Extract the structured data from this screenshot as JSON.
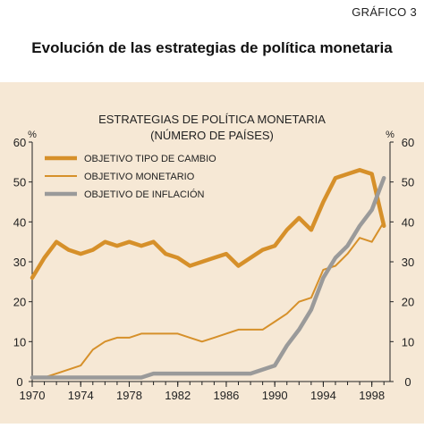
{
  "header": {
    "figure_label": "GRÁFICO 3",
    "title": "Evolución de las estrategias de política monetaria"
  },
  "chart_data": {
    "type": "line",
    "title_lines": [
      "ESTRATEGIAS DE POLÍTICA MONETARIA",
      "(NÚMERO DE PAÍSES)"
    ],
    "y_unit_left": "%",
    "y_unit_right": "%",
    "ylim": [
      0,
      60
    ],
    "yticks": [
      "0",
      "10",
      "20",
      "30",
      "40",
      "50",
      "60"
    ],
    "xlim": [
      1970,
      1999.5
    ],
    "xticks": [
      "1970",
      "1974",
      "1978",
      "1982",
      "1986",
      "1990",
      "1994",
      "1998"
    ],
    "grid": false,
    "legend_position": "top-left",
    "colors": {
      "background": "#f6e8d5",
      "axis": "#222222",
      "tipo_cambio": "#d6902a",
      "monetario": "#d6902a",
      "inflacion": "#9a9a9a"
    },
    "series": [
      {
        "name": "OBJETIVO TIPO DE CAMBIO",
        "x": [
          1970,
          1971,
          1972,
          1973,
          1974,
          1975,
          1976,
          1977,
          1978,
          1979,
          1980,
          1981,
          1982,
          1983,
          1984,
          1985,
          1986,
          1987,
          1988,
          1989,
          1990,
          1991,
          1992,
          1993,
          1994,
          1995,
          1996,
          1997,
          1998,
          1999
        ],
        "values": [
          26,
          31,
          35,
          33,
          32,
          33,
          35,
          34,
          35,
          34,
          35,
          32,
          31,
          29,
          30,
          31,
          32,
          29,
          31,
          33,
          34,
          38,
          41,
          38,
          45,
          51,
          52,
          53,
          52,
          39
        ]
      },
      {
        "name": "OBJETIVO MONETARIO",
        "x": [
          1970,
          1971,
          1972,
          1973,
          1974,
          1975,
          1976,
          1977,
          1978,
          1979,
          1980,
          1981,
          1982,
          1983,
          1984,
          1985,
          1986,
          1987,
          1988,
          1989,
          1990,
          1991,
          1992,
          1993,
          1994,
          1995,
          1996,
          1997,
          1998,
          1999
        ],
        "values": [
          1,
          1,
          2,
          3,
          4,
          8,
          10,
          11,
          11,
          12,
          12,
          12,
          12,
          11,
          10,
          11,
          12,
          13,
          13,
          13,
          15,
          17,
          20,
          21,
          28,
          29,
          32,
          36,
          35,
          40
        ]
      },
      {
        "name": "OBJETIVO DE INFLACIÓN",
        "x": [
          1970,
          1971,
          1972,
          1973,
          1974,
          1975,
          1976,
          1977,
          1978,
          1979,
          1980,
          1981,
          1982,
          1983,
          1984,
          1985,
          1986,
          1987,
          1988,
          1989,
          1990,
          1991,
          1992,
          1993,
          1994,
          1995,
          1996,
          1997,
          1998,
          1999
        ],
        "values": [
          1,
          1,
          1,
          1,
          1,
          1,
          1,
          1,
          1,
          1,
          2,
          2,
          2,
          2,
          2,
          2,
          2,
          2,
          2,
          3,
          4,
          9,
          13,
          18,
          26,
          31,
          34,
          39,
          43,
          51
        ]
      }
    ]
  }
}
